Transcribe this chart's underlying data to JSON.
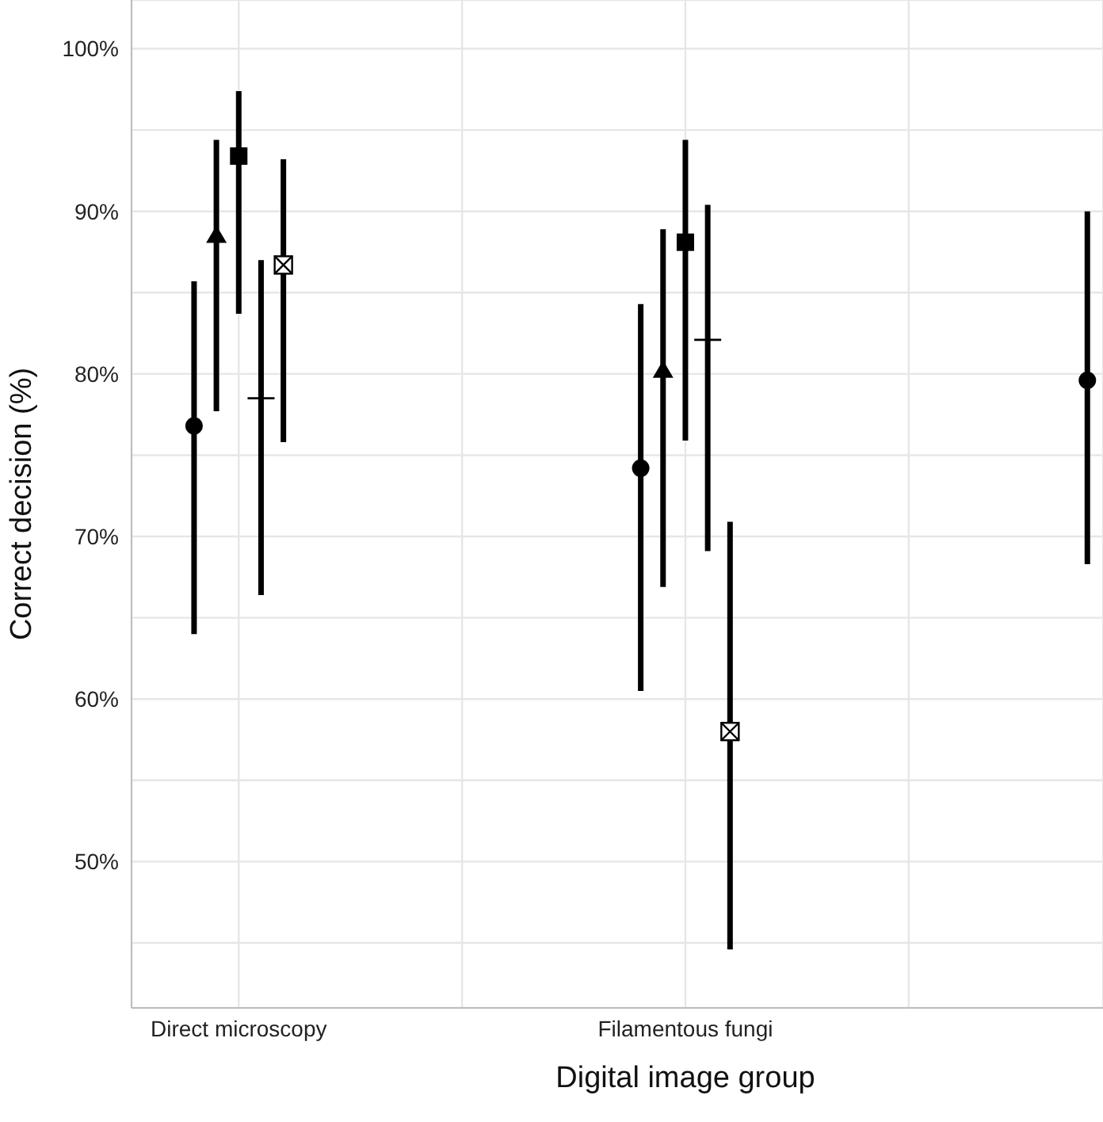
{
  "chart_data": {
    "type": "scatter",
    "categories": [
      "Direct microscopy",
      "Filamentous fungi",
      null
    ],
    "xlabel": "Digital image group",
    "ylabel": "Correct decision (%)",
    "ylim": [
      41,
      103
    ],
    "yticks": [
      {
        "value": 45,
        "label": null
      },
      {
        "value": 50,
        "label": "50%"
      },
      {
        "value": 55,
        "label": null
      },
      {
        "value": 60,
        "label": "60%"
      },
      {
        "value": 65,
        "label": null
      },
      {
        "value": 70,
        "label": "70%"
      },
      {
        "value": 75,
        "label": null
      },
      {
        "value": 80,
        "label": "80%"
      },
      {
        "value": 85,
        "label": null
      },
      {
        "value": 90,
        "label": "90%"
      },
      {
        "value": 95,
        "label": null
      },
      {
        "value": 100,
        "label": "100%"
      }
    ],
    "grid": true,
    "legend": false,
    "series": [
      {
        "color": "#000000",
        "marker": "circle",
        "values": [
          76.8,
          74.2,
          79.6
        ],
        "errors": [
          [
            64.0,
            85.7
          ],
          [
            60.5,
            84.3
          ],
          [
            68.3,
            90.0
          ]
        ]
      },
      {
        "color": "#000000",
        "marker": "triangle",
        "values": [
          88.5,
          80.2,
          null
        ],
        "errors": [
          [
            77.7,
            94.4
          ],
          [
            66.9,
            88.9
          ],
          null
        ]
      },
      {
        "color": "#000000",
        "marker": "square",
        "values": [
          93.4,
          88.1,
          null
        ],
        "errors": [
          [
            83.7,
            97.4
          ],
          [
            75.9,
            94.4
          ],
          null
        ]
      },
      {
        "color": "#000000",
        "marker": "cross",
        "values": [
          78.5,
          82.1,
          null
        ],
        "errors": [
          [
            66.4,
            87.0
          ],
          [
            69.1,
            90.4
          ],
          null
        ]
      },
      {
        "color": "#000000",
        "marker": "square-cross",
        "values": [
          86.7,
          58.0,
          null
        ],
        "errors": [
          [
            75.8,
            93.2
          ],
          [
            44.6,
            70.9
          ],
          null
        ]
      }
    ]
  }
}
